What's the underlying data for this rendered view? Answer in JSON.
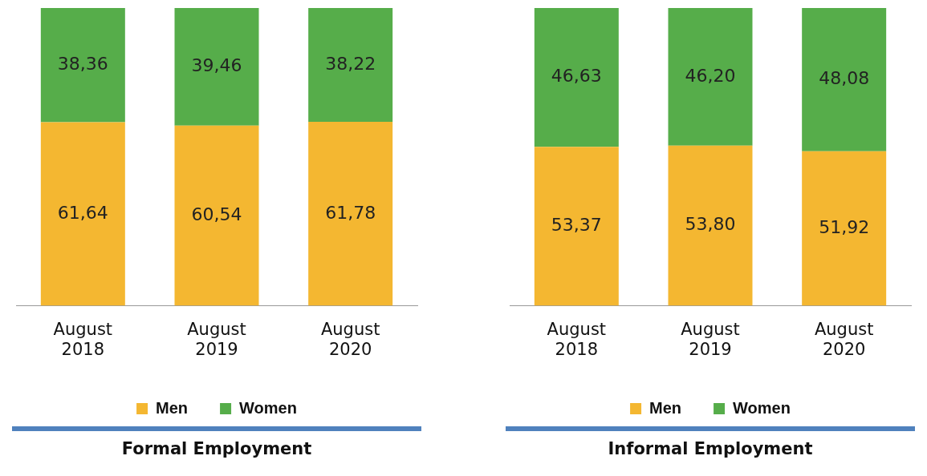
{
  "chart_data": [
    {
      "type": "bar",
      "title": "Formal Employment",
      "stacked": true,
      "categories": [
        "August 2018",
        "August 2019",
        "August 2020"
      ],
      "legend": "bottom",
      "grid": false,
      "tick_labels": "x",
      "series": [
        {
          "name": "Men",
          "color": "#f4b731",
          "values": [
            61.64,
            60.54,
            61.78
          ],
          "value_labels": [
            "61,64",
            "60,54",
            "61,78"
          ]
        },
        {
          "name": "Women",
          "color": "#56ad4a",
          "values": [
            38.36,
            39.46,
            38.22
          ],
          "value_labels": [
            "38,36",
            "39,46",
            "38,22"
          ]
        }
      ]
    },
    {
      "type": "bar",
      "title": "Informal Employment",
      "stacked": true,
      "categories": [
        "August 2018",
        "August 2019",
        "August 2020"
      ],
      "legend": "bottom",
      "grid": false,
      "tick_labels": "x",
      "series": [
        {
          "name": "Men",
          "color": "#f4b731",
          "values": [
            53.37,
            53.8,
            51.92
          ],
          "value_labels": [
            "53,37",
            "53,80",
            "51,92"
          ]
        },
        {
          "name": "Women",
          "color": "#56ad4a",
          "values": [
            46.63,
            46.2,
            48.08
          ],
          "value_labels": [
            "46,63",
            "46,20",
            "48,08"
          ]
        }
      ]
    }
  ]
}
